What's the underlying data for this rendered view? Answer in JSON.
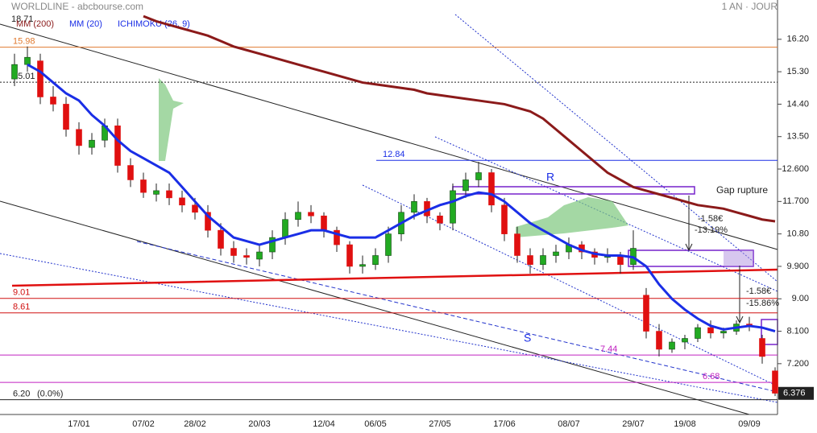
{
  "header": {
    "title": "WORLDLINE - abcbourse.com",
    "period": "1 AN · JOUR",
    "corner_value": "18.71",
    "ichimoku_label": "ICHIMOKU (26, 9)"
  },
  "chart_data": {
    "type": "candlestick",
    "categories": [
      null,
      null,
      null,
      null,
      null,
      "17/01",
      null,
      null,
      null,
      null,
      "07/02",
      null,
      null,
      null,
      "28/02",
      null,
      null,
      null,
      null,
      "20/03",
      null,
      null,
      null,
      null,
      "12/04",
      null,
      null,
      null,
      "06/05",
      null,
      null,
      null,
      null,
      "27/05",
      null,
      null,
      null,
      null,
      "17/06",
      null,
      null,
      null,
      null,
      "08/07",
      null,
      null,
      null,
      null,
      "29/07",
      null,
      null,
      null,
      "19/08",
      null,
      null,
      null,
      null,
      "09/09",
      null,
      null
    ],
    "open": [
      15.1,
      15.5,
      15.6,
      14.6,
      14.4,
      13.7,
      13.2,
      13.4,
      13.8,
      12.7,
      12.3,
      11.9,
      12.0,
      11.8,
      11.6,
      11.4,
      10.9,
      10.4,
      10.2,
      10.1,
      10.3,
      10.7,
      11.2,
      11.4,
      11.3,
      10.9,
      10.5,
      9.9,
      9.95,
      10.2,
      10.8,
      11.4,
      11.7,
      11.3,
      11.1,
      12.0,
      12.3,
      12.5,
      11.6,
      10.8,
      10.2,
      9.95,
      10.2,
      10.3,
      10.5,
      10.3,
      10.15,
      10.2,
      9.95,
      9.1,
      8.1,
      7.6,
      7.8,
      7.9,
      8.2,
      8.05,
      8.1,
      8.3,
      7.9,
      7.0
    ],
    "high": [
      15.8,
      16.0,
      15.8,
      14.9,
      14.6,
      13.9,
      13.6,
      14.0,
      14.0,
      12.9,
      12.5,
      12.2,
      12.2,
      12.0,
      11.8,
      11.6,
      11.1,
      10.6,
      10.4,
      10.5,
      10.9,
      11.4,
      11.7,
      11.6,
      11.4,
      11.0,
      10.6,
      10.2,
      10.4,
      11.0,
      11.6,
      11.9,
      11.8,
      11.4,
      12.2,
      12.5,
      12.8,
      12.6,
      11.8,
      11.0,
      10.4,
      10.4,
      10.5,
      10.7,
      10.6,
      10.4,
      10.4,
      10.3,
      10.9,
      9.3,
      8.3,
      7.9,
      8.0,
      8.3,
      8.4,
      8.2,
      8.4,
      8.5,
      8.0,
      7.1
    ],
    "low": [
      14.9,
      15.3,
      14.4,
      14.2,
      13.5,
      13.0,
      13.0,
      13.2,
      12.5,
      12.1,
      11.8,
      11.7,
      11.6,
      11.4,
      11.2,
      10.7,
      10.2,
      10.0,
      9.95,
      9.9,
      10.1,
      10.5,
      11.0,
      11.1,
      10.7,
      10.3,
      9.7,
      9.7,
      9.8,
      10.0,
      10.6,
      11.2,
      11.1,
      10.9,
      10.9,
      11.8,
      12.1,
      11.4,
      10.6,
      10.0,
      9.7,
      9.8,
      10.0,
      10.1,
      10.1,
      9.95,
      10.0,
      9.7,
      9.8,
      7.9,
      7.4,
      7.5,
      7.6,
      7.8,
      7.9,
      7.9,
      8.0,
      8.1,
      7.2,
      6.3
    ],
    "close": [
      15.5,
      15.7,
      14.6,
      14.4,
      13.7,
      13.25,
      13.4,
      13.8,
      12.7,
      12.3,
      11.95,
      12.0,
      11.8,
      11.6,
      11.4,
      10.9,
      10.4,
      10.2,
      10.15,
      10.3,
      10.7,
      11.2,
      11.4,
      11.3,
      10.9,
      10.5,
      9.9,
      9.95,
      10.2,
      10.8,
      11.4,
      11.7,
      11.3,
      11.1,
      12.0,
      12.3,
      12.5,
      11.6,
      10.8,
      10.2,
      9.95,
      10.2,
      10.3,
      10.5,
      10.3,
      10.15,
      10.2,
      9.95,
      10.4,
      8.1,
      7.6,
      7.8,
      7.9,
      8.2,
      8.05,
      8.1,
      8.3,
      8.25,
      7.4,
      6.38
    ],
    "up_color": "#22aa22",
    "down_color": "#e01010",
    "series": [
      {
        "name": "MM (200)",
        "color": "#8b1a1a",
        "values": [
          null,
          null,
          null,
          null,
          null,
          null,
          null,
          null,
          null,
          null,
          16.84,
          16.7,
          16.6,
          16.5,
          16.4,
          16.3,
          16.15,
          16.0,
          15.9,
          15.8,
          15.7,
          15.6,
          15.5,
          15.4,
          15.3,
          15.2,
          15.1,
          15.0,
          14.95,
          14.9,
          14.85,
          14.8,
          14.7,
          14.65,
          14.6,
          14.55,
          14.5,
          14.45,
          14.4,
          14.3,
          14.2,
          14.0,
          13.7,
          13.4,
          13.1,
          12.8,
          12.5,
          12.3,
          12.1,
          12.0,
          11.9,
          11.8,
          11.7,
          11.6,
          11.55,
          11.5,
          11.4,
          11.3,
          11.2,
          11.15
        ]
      },
      {
        "name": "MM (20)",
        "color": "#1a2ee6",
        "values": [
          null,
          15.5,
          15.3,
          15.0,
          14.7,
          14.5,
          14.1,
          13.8,
          13.4,
          13.1,
          12.9,
          12.7,
          12.5,
          12.1,
          11.7,
          11.3,
          11.0,
          10.7,
          10.6,
          10.5,
          10.6,
          10.7,
          10.8,
          10.9,
          10.9,
          10.8,
          10.7,
          10.7,
          10.7,
          10.9,
          11.1,
          11.3,
          11.45,
          11.6,
          11.7,
          11.85,
          11.95,
          11.9,
          11.7,
          11.4,
          11.1,
          10.9,
          10.7,
          10.5,
          10.35,
          10.25,
          10.2,
          10.2,
          10.15,
          9.9,
          9.4,
          9.0,
          8.7,
          8.45,
          8.25,
          8.15,
          8.2,
          8.25,
          8.2,
          8.1
        ]
      }
    ],
    "ylim": [
      5.79,
      17.29
    ],
    "yticks": [
      {
        "value": 16.2,
        "label": "16.20"
      },
      {
        "value": 15.3,
        "label": "15.30"
      },
      {
        "value": 14.4,
        "label": "14.40"
      },
      {
        "value": 13.5,
        "label": "13.50"
      },
      {
        "value": 12.6,
        "label": "12.600"
      },
      {
        "value": 11.7,
        "label": "11.700"
      },
      {
        "value": 10.8,
        "label": "10.80"
      },
      {
        "value": 9.9,
        "label": "9.900"
      },
      {
        "value": 9.0,
        "label": "9.00"
      },
      {
        "value": 8.1,
        "label": "8.100"
      },
      {
        "value": 7.2,
        "label": "7.200"
      }
    ],
    "levels": [
      {
        "value": 15.98,
        "color": "#e07a30",
        "style": "solid"
      },
      {
        "value": 15.01,
        "color": "#222222",
        "style": "dotted"
      },
      {
        "value": 12.84,
        "color": "#1a2ee6",
        "style": "solid"
      },
      {
        "value": 9.01,
        "color": "#d01010",
        "style": "solid"
      },
      {
        "value": 8.61,
        "color": "#d01010",
        "style": "solid"
      },
      {
        "value": 7.44,
        "color": "#c020c0",
        "style": "solid"
      },
      {
        "value": 6.68,
        "color": "#c020c0",
        "style": "solid"
      },
      {
        "value": 6.2,
        "label": "6.20",
        "note": "(0.0%)",
        "color": "#222222",
        "style": "solid"
      }
    ],
    "last_price": 6.376,
    "annotations": [
      "R",
      "S",
      "Gap rupture",
      "-1.58€",
      "-13.19%",
      "-1.58€",
      "-15.86%"
    ]
  }
}
